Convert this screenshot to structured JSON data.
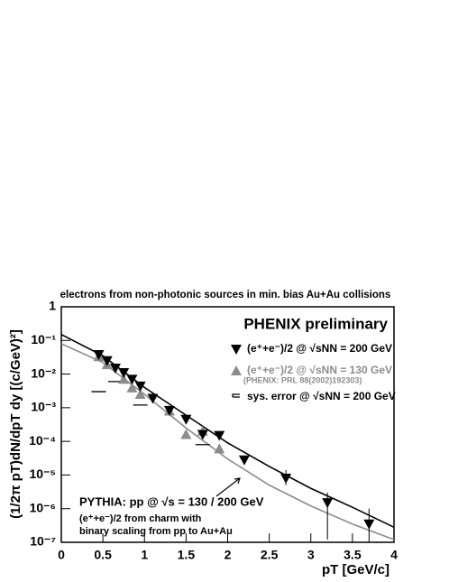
{
  "chart_data": {
    "type": "scatter",
    "title": "electrons from non-photonic sources in min. bias Au+Au collisions",
    "x_label": "pT [GeV/c]",
    "y_label": "(1/2π pT)dN/dpT dy [(c/GeV)²]",
    "log_y": true,
    "xlim": [
      0,
      4
    ],
    "ylim": [
      1e-07,
      1
    ],
    "xticks": [
      0,
      0.5,
      1,
      1.5,
      2,
      2.5,
      3,
      3.5,
      4
    ],
    "yticks": [
      {
        "value": 1e-07,
        "label": "10⁻⁷"
      },
      {
        "value": 1e-06,
        "label": "10⁻⁶"
      },
      {
        "value": 1e-05,
        "label": "10⁻⁵"
      },
      {
        "value": 0.0001,
        "label": "10⁻⁴"
      },
      {
        "value": 0.001,
        "label": "10⁻³"
      },
      {
        "value": 0.01,
        "label": "10⁻²"
      },
      {
        "value": 0.1,
        "label": "10⁻¹"
      },
      {
        "value": 1,
        "label": "1"
      }
    ],
    "heading": "PHENIX preliminary",
    "series": [
      {
        "name": "(e⁺+e⁻)/2 @ √sNN = 200 GeV",
        "color": "#000000",
        "marker": "triangle-down",
        "x": [
          0.45,
          0.55,
          0.65,
          0.75,
          0.85,
          0.95,
          1.1,
          1.3,
          1.5,
          1.7,
          1.9,
          2.2,
          2.7,
          3.2,
          3.7
        ],
        "values": [
          0.038,
          0.025,
          0.015,
          0.011,
          0.007,
          0.0044,
          0.0019,
          0.00083,
          0.00045,
          0.00016,
          0.00015,
          2.8e-05,
          8e-06,
          1.5e-06,
          3.5e-07
        ],
        "y_low": [
          null,
          null,
          null,
          null,
          null,
          null,
          null,
          null,
          null,
          null,
          null,
          null,
          5e-06,
          1.2e-07,
          1e-07
        ],
        "y_high": [
          null,
          null,
          null,
          null,
          null,
          null,
          null,
          null,
          null,
          null,
          null,
          null,
          1.4e-05,
          3e-06,
          1e-06
        ]
      },
      {
        "name": "(e⁺+e⁻)/2 @ √sNN = 130 GeV",
        "color": "#8c8c8c",
        "marker": "triangle-up",
        "x": [
          0.45,
          0.55,
          0.75,
          0.85,
          0.95,
          1.3,
          1.5,
          1.7,
          1.9
        ],
        "values": [
          0.033,
          0.019,
          0.007,
          0.0039,
          0.0025,
          0.0008,
          0.00016,
          0.0002,
          6e-05
        ]
      }
    ],
    "reference": "(PHENIX: PRL 88(2002)192303)",
    "sys_error": {
      "name": "sys. error @ √sNN = 200 GeV",
      "x": [
        0.45,
        0.65,
        0.95,
        1.7
      ],
      "values": [
        0.003,
        0.006,
        0.0012,
        8e-05
      ]
    },
    "curves": [
      {
        "color": "#000000",
        "x": [
          0,
          0.5,
          1,
          1.5,
          2,
          2.5,
          3,
          3.5,
          4
        ],
        "values": [
          0.15,
          0.035,
          0.004,
          0.0006,
          9e-05,
          1.8e-05,
          4e-06,
          1.1e-06,
          2.8e-07
        ]
      },
      {
        "color": "#8c8c8c",
        "x": [
          0,
          0.5,
          1,
          1.5,
          2,
          2.5,
          3,
          3.5,
          4
        ],
        "values": [
          0.08,
          0.022,
          0.0025,
          0.00025,
          3e-05,
          5e-06,
          1.2e-06,
          3.5e-07,
          1.2e-07
        ]
      }
    ],
    "annotation_1": "PYTHIA: pp @ √s = 130 / 200 GeV",
    "annotation_2": "(e⁺+e⁻)/2 from charm with",
    "annotation_3": "binary scaling from pp to Au+Au"
  }
}
